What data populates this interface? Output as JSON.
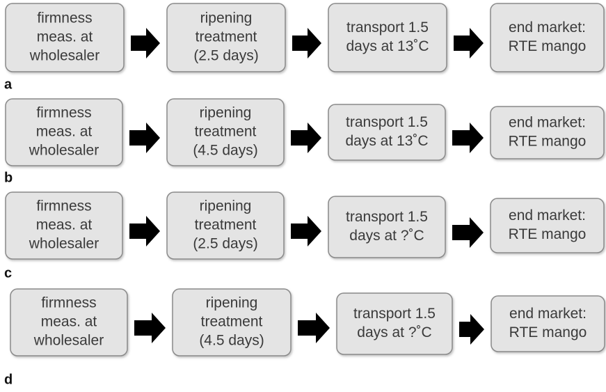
{
  "rows": [
    {
      "label": "a",
      "boxes": [
        {
          "lines": [
            "firmness",
            "meas. at",
            "wholesaler"
          ]
        },
        {
          "lines": [
            "ripening",
            "treatment",
            "(2.5 days)"
          ]
        },
        {
          "lines": [
            "transport 1.5",
            "days at 13˚C"
          ]
        },
        {
          "lines": [
            "end market:",
            "RTE mango"
          ]
        }
      ]
    },
    {
      "label": "b",
      "boxes": [
        {
          "lines": [
            "firmness",
            "meas. at",
            "wholesaler"
          ]
        },
        {
          "lines": [
            "ripening",
            "treatment",
            "(4.5 days)"
          ]
        },
        {
          "lines": [
            "transport 1.5",
            "days at 13˚C"
          ]
        },
        {
          "lines": [
            "end market:",
            "RTE mango"
          ]
        }
      ]
    },
    {
      "label": "c",
      "boxes": [
        {
          "lines": [
            "firmness",
            "meas. at",
            "wholesaler"
          ]
        },
        {
          "lines": [
            "ripening",
            "treatment",
            "(2.5 days)"
          ]
        },
        {
          "lines": [
            "transport 1.5",
            "days at ?˚C"
          ]
        },
        {
          "lines": [
            "end market:",
            "RTE mango"
          ]
        }
      ]
    },
    {
      "label": "d",
      "boxes": [
        {
          "lines": [
            "firmness",
            "meas. at",
            "wholesaler"
          ]
        },
        {
          "lines": [
            "ripening",
            "treatment",
            "(4.5 days)"
          ]
        },
        {
          "lines": [
            "transport 1.5",
            "days at ?˚C"
          ]
        },
        {
          "lines": [
            "end market:",
            "RTE mango"
          ]
        }
      ]
    }
  ]
}
